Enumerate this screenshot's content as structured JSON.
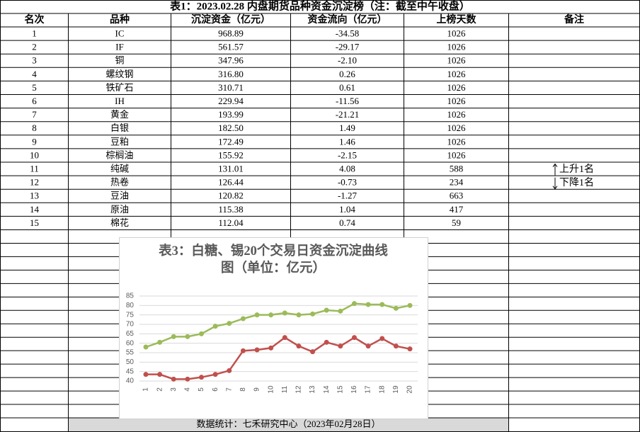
{
  "title": "表1：2023.02.28 内盘期货品种资金沉淀榜（注：截至中午收盘）",
  "table": {
    "header": [
      "名次",
      "品种",
      "沉淀资金（亿元）",
      "资金流向（亿元）",
      "上榜天数",
      "备注"
    ],
    "rows": [
      [
        "1",
        "IC",
        "968.89",
        "-34.58",
        "1026"
      ],
      [
        "2",
        "IF",
        "561.57",
        "-29.17",
        "1026"
      ],
      [
        "3",
        "铜",
        "347.96",
        "-2.10",
        "1026"
      ],
      [
        "4",
        "螺纹钢",
        "316.80",
        "0.26",
        "1026"
      ],
      [
        "5",
        "铁矿石",
        "310.71",
        "0.61",
        "1026"
      ],
      [
        "6",
        "IH",
        "229.94",
        "-11.56",
        "1026"
      ],
      [
        "7",
        "黄金",
        "193.99",
        "-21.21",
        "1026"
      ],
      [
        "8",
        "白银",
        "182.50",
        "1.49",
        "1026"
      ],
      [
        "9",
        "豆粕",
        "172.49",
        "1.46",
        "1026"
      ],
      [
        "10",
        "棕榈油",
        "155.92",
        "-2.15",
        "1026"
      ],
      [
        "11",
        "纯碱",
        "131.01",
        "4.08",
        "588",
        "上升1名"
      ],
      [
        "12",
        "热卷",
        "126.44",
        "-0.73",
        "234",
        "下降1名"
      ],
      [
        "13",
        "豆油",
        "120.82",
        "-1.27",
        "663"
      ],
      [
        "14",
        "原油",
        "115.38",
        "1.04",
        "417"
      ],
      [
        "15",
        "棉花",
        "112.04",
        "0.74",
        "59"
      ]
    ]
  },
  "footer": "数据统计：七禾研究中心（2023年02月28日）",
  "chart_data": {
    "type": "line",
    "title": "表3：白糖、锡20个交易日资金沉淀曲线图（单位：亿元）",
    "categories": [
      "1",
      "2",
      "3",
      "4",
      "5",
      "6",
      "7",
      "8",
      "9",
      "10",
      "11",
      "12",
      "13",
      "14",
      "15",
      "16",
      "17",
      "18",
      "19",
      "20"
    ],
    "series": [
      {
        "color": "#9bbb59",
        "values": [
          58,
          60.5,
          63.5,
          63.5,
          65,
          69,
          70.5,
          73,
          75,
          75,
          76,
          75,
          75.5,
          77.5,
          77,
          81,
          80.5,
          80.5,
          78.5,
          80
        ]
      },
      {
        "color": "#c0504d",
        "values": [
          43.5,
          43.5,
          41,
          41,
          42,
          43.5,
          45.5,
          56,
          56.5,
          57.5,
          63,
          58.5,
          55.5,
          60.5,
          58.5,
          63,
          58.5,
          62.5,
          58.5,
          57
        ]
      }
    ],
    "ylim": [
      40,
      85
    ],
    "yticks": [
      40,
      45,
      50,
      55,
      60,
      65,
      70,
      75,
      80,
      85
    ],
    "grid": true
  }
}
